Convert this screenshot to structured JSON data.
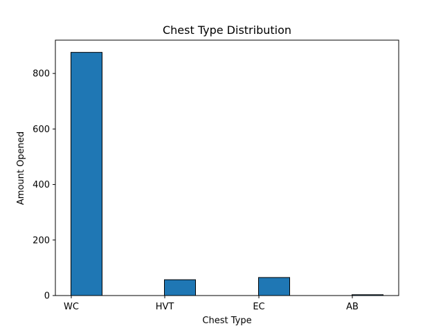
{
  "chart_data": {
    "type": "bar",
    "title": "Chest Type Distribution",
    "xlabel": "Chest Type",
    "ylabel": "Amount Opened",
    "categories": [
      "WC",
      "HVT",
      "EC",
      "AB"
    ],
    "values": [
      876,
      57,
      65,
      3
    ],
    "ylim": [
      0,
      920
    ],
    "yticks": [
      0,
      200,
      400,
      600,
      800
    ],
    "grid": false,
    "legend": "none",
    "bar_color": "#1f77b4",
    "edge_color": "#000000"
  }
}
